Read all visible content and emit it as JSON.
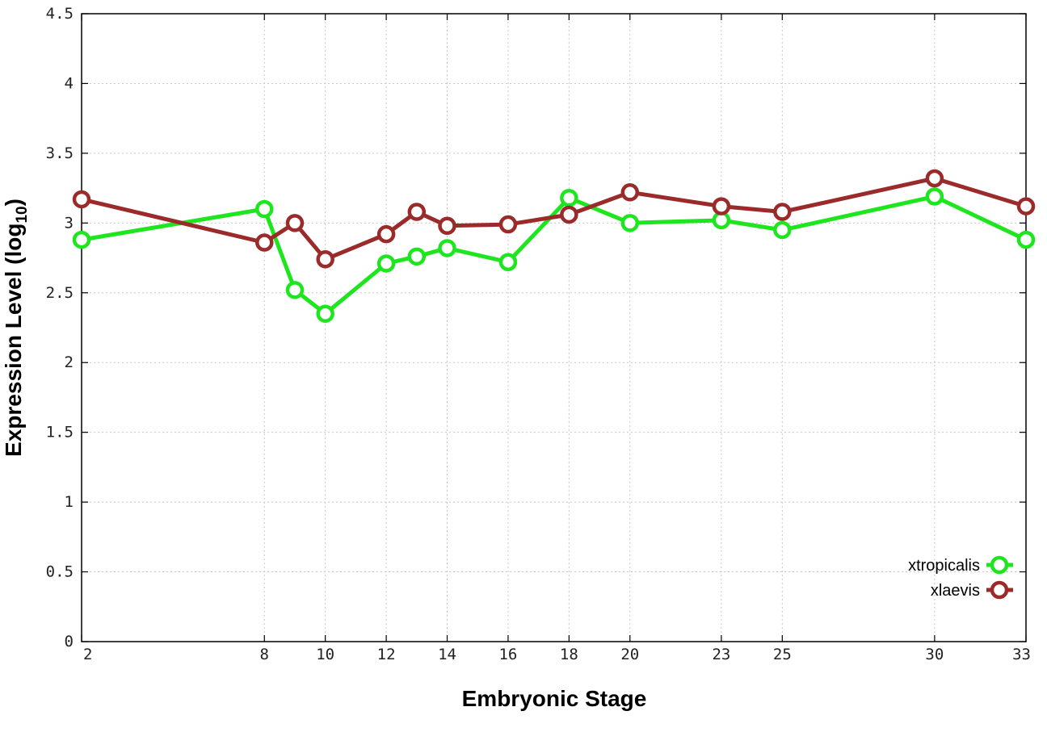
{
  "chart_data": {
    "type": "line",
    "xlabel": "Embryonic Stage",
    "ylabel_main": "Expression Level (log",
    "ylabel_sub": "10",
    "ylabel_end": ")",
    "ylim": [
      0,
      4.5
    ],
    "xlim": [
      2,
      33
    ],
    "x_ticks": [
      2,
      8,
      10,
      12,
      14,
      16,
      18,
      20,
      23,
      25,
      30,
      33
    ],
    "y_ticks": [
      0,
      0.5,
      1,
      1.5,
      2,
      2.5,
      3,
      3.5,
      4,
      4.5
    ],
    "y_tick_labels": [
      "0",
      "0.5",
      "1",
      "1.5",
      "2",
      "2.5",
      "3",
      "3.5",
      "4",
      "4.5"
    ],
    "grid": true,
    "legend_position": "bottom-right",
    "series": [
      {
        "name": "xtropicalis",
        "color": "#1ee61e",
        "x": [
          2,
          8,
          9,
          10,
          12,
          13,
          14,
          16,
          18,
          20,
          23,
          25,
          30,
          33
        ],
        "y": [
          2.88,
          3.1,
          2.52,
          2.35,
          2.71,
          2.76,
          2.82,
          2.72,
          3.18,
          3.0,
          3.02,
          2.95,
          3.19,
          2.88
        ]
      },
      {
        "name": "xlaevis",
        "color": "#9b2a2a",
        "x": [
          2,
          8,
          9,
          10,
          12,
          13,
          14,
          16,
          18,
          20,
          23,
          25,
          30,
          33
        ],
        "y": [
          3.17,
          2.86,
          3.0,
          2.74,
          2.92,
          3.08,
          2.98,
          2.99,
          3.06,
          3.22,
          3.12,
          3.08,
          3.32,
          3.12
        ]
      }
    ]
  }
}
